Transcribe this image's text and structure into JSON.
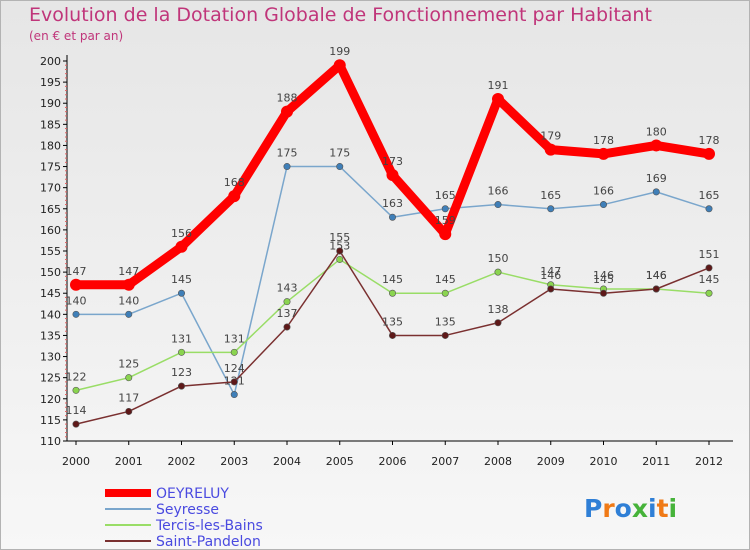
{
  "title": "Evolution de la Dotation Globale de Fonctionnement par Habitant",
  "subtitle": "(en € et par an)",
  "logo_text": "Proxiti",
  "chart_data": {
    "type": "line",
    "title": "Evolution de la Dotation Globale de Fonctionnement par Habitant",
    "subtitle": "(en € et par an)",
    "xlabel": "",
    "ylabel": "",
    "x": [
      2000,
      2001,
      2002,
      2003,
      2004,
      2005,
      2006,
      2007,
      2008,
      2009,
      2010,
      2011,
      2012
    ],
    "ylim": [
      110,
      200
    ],
    "ytick_step": 5,
    "grid": false,
    "legend_position": "bottom-left",
    "series": [
      {
        "name": "OEYRELUY",
        "color": "#ff0000",
        "marker": "#ff0000",
        "thick": true,
        "values": [
          147,
          147,
          156,
          168,
          188,
          199,
          173,
          159,
          191,
          179,
          178,
          180,
          178
        ]
      },
      {
        "name": "Seyresse",
        "color": "#7aa6cc",
        "marker": "#3f7fb8",
        "thick": false,
        "values": [
          140,
          140,
          145,
          121,
          175,
          175,
          163,
          165,
          166,
          165,
          166,
          169,
          165
        ]
      },
      {
        "name": "Tercis-les-Bains",
        "color": "#99dd66",
        "marker": "#8ad44f",
        "thick": false,
        "values": [
          122,
          125,
          131,
          131,
          143,
          153,
          145,
          145,
          150,
          147,
          146,
          146,
          145
        ]
      },
      {
        "name": "Saint-Pandelon",
        "color": "#7a3030",
        "marker": "#5e1818",
        "thick": false,
        "values": [
          114,
          117,
          123,
          124,
          137,
          155,
          135,
          135,
          138,
          146,
          145,
          146,
          151
        ]
      }
    ]
  }
}
